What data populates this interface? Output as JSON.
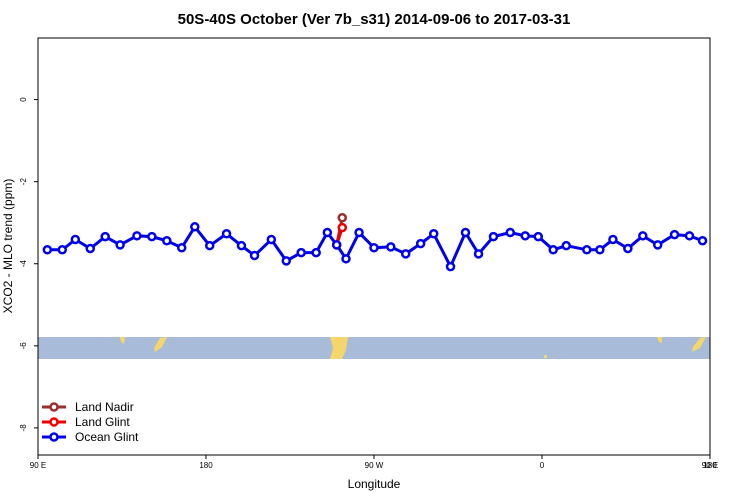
{
  "chart_data": {
    "type": "line",
    "title": "50S-40S October (Ver 7b_s31)   2014-09-06 to 2017-03-31",
    "x_label": "Longitude",
    "y_label": "XCO2 - MLO trend (ppm)",
    "xlim": [
      90,
      450
    ],
    "ylim": [
      1.5,
      -8.66
    ],
    "xticks": [
      {
        "value": 90,
        "label": "90 E"
      },
      {
        "value": 180,
        "label": "180"
      },
      {
        "value": 270,
        "label": "90 W"
      },
      {
        "value": 360,
        "label": "0"
      },
      {
        "value": 450,
        "label": "90 E"
      },
      {
        "value": 540,
        "label": "180"
      }
    ],
    "yticks": [
      0,
      -2,
      -4,
      -6,
      -8
    ],
    "legend": "bottom-left",
    "series": [
      {
        "name": "Land Nadir",
        "color": "#9b2d2d",
        "x": [
          250,
          253
        ],
        "values": [
          -3.54,
          -2.88
        ]
      },
      {
        "name": "Land Glint",
        "color": "#ee0000",
        "x": [
          250,
          253
        ],
        "values": [
          -3.54,
          -3.12
        ]
      },
      {
        "name": "Ocean Glint",
        "color": "#0000ee",
        "x": [
          95,
          103,
          110,
          118,
          126,
          134,
          143,
          151,
          159,
          167,
          174,
          182,
          191,
          199,
          206,
          215,
          223,
          231,
          239,
          245,
          250,
          255,
          262,
          270,
          279,
          287,
          295,
          302,
          311,
          319,
          326,
          334,
          343,
          351,
          358,
          366,
          373,
          384,
          391,
          398,
          406,
          414,
          422,
          431,
          439,
          446
        ],
        "values": [
          -3.66,
          -3.66,
          -3.41,
          -3.63,
          -3.34,
          -3.54,
          -3.32,
          -3.34,
          -3.44,
          -3.61,
          -3.1,
          -3.56,
          -3.27,
          -3.56,
          -3.8,
          -3.41,
          -3.93,
          -3.73,
          -3.73,
          -3.24,
          -3.54,
          -3.88,
          -3.24,
          -3.61,
          -3.59,
          -3.76,
          -3.51,
          -3.27,
          -4.07,
          -3.24,
          -3.76,
          -3.34,
          -3.24,
          -3.32,
          -3.34,
          -3.66,
          -3.56,
          -3.66,
          -3.66,
          -3.41,
          -3.63,
          -3.32,
          -3.54,
          -3.29,
          -3.32,
          -3.44
        ]
      }
    ]
  }
}
